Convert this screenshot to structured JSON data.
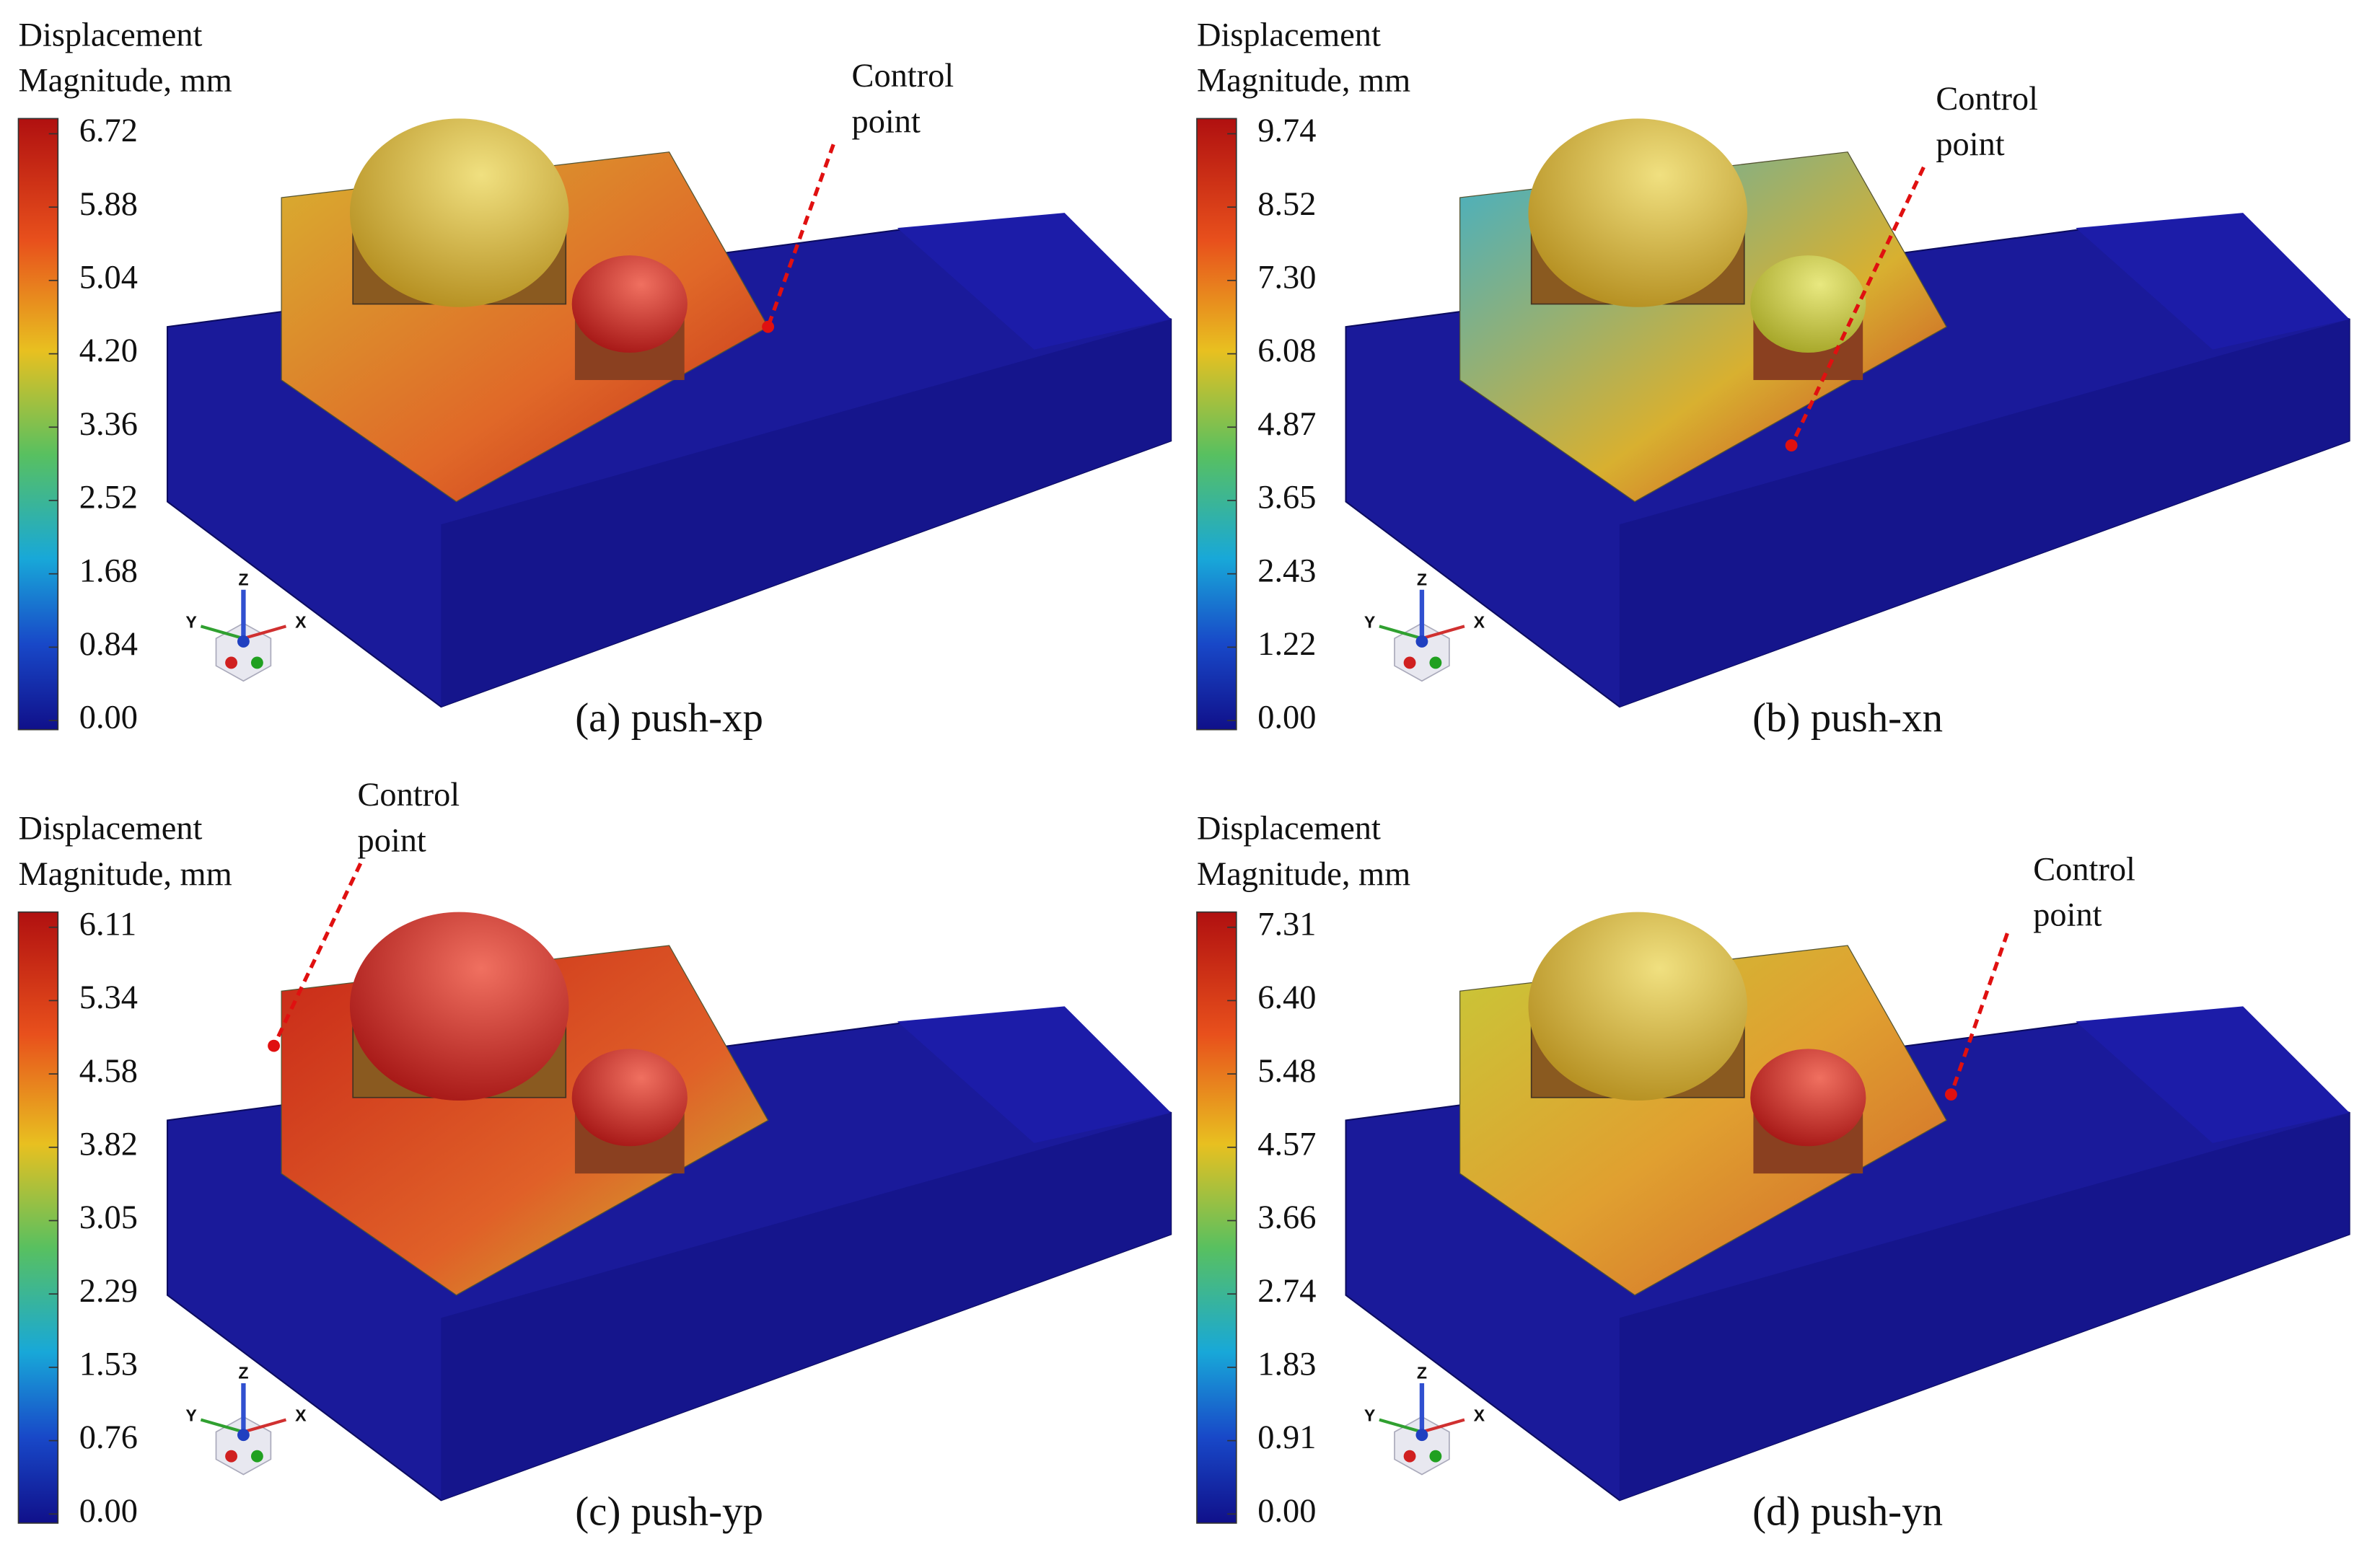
{
  "triad_labels": {
    "z": "Z",
    "y": "Y",
    "x": "X"
  },
  "panels": [
    {
      "legend_title": [
        "Displacement",
        "Magnitude, mm"
      ],
      "ticks": [
        "6.72",
        "5.88",
        "5.04",
        "4.20",
        "3.36",
        "2.52",
        "1.68",
        "0.84",
        "0.00"
      ],
      "caption": "(a) push-xp",
      "annotation": [
        "Control",
        "point"
      ]
    },
    {
      "legend_title": [
        "Displacement",
        "Magnitude, mm"
      ],
      "ticks": [
        "9.74",
        "8.52",
        "7.30",
        "6.08",
        "4.87",
        "3.65",
        "2.43",
        "1.22",
        "0.00"
      ],
      "caption": "(b) push-xn",
      "annotation": [
        "Control",
        "point"
      ]
    },
    {
      "legend_title": [
        "Displacement",
        "Magnitude, mm"
      ],
      "ticks": [
        "6.11",
        "5.34",
        "4.58",
        "3.82",
        "3.05",
        "2.29",
        "1.53",
        "0.76",
        "0.00"
      ],
      "caption": "(c) push-yp",
      "annotation": [
        "Control",
        "point"
      ]
    },
    {
      "legend_title": [
        "Displacement",
        "Magnitude, mm"
      ],
      "ticks": [
        "7.31",
        "6.40",
        "5.48",
        "4.57",
        "3.66",
        "2.74",
        "1.83",
        "0.91",
        "0.00"
      ],
      "caption": "(d) push-yn",
      "annotation": [
        "Control",
        "point"
      ]
    }
  ]
}
